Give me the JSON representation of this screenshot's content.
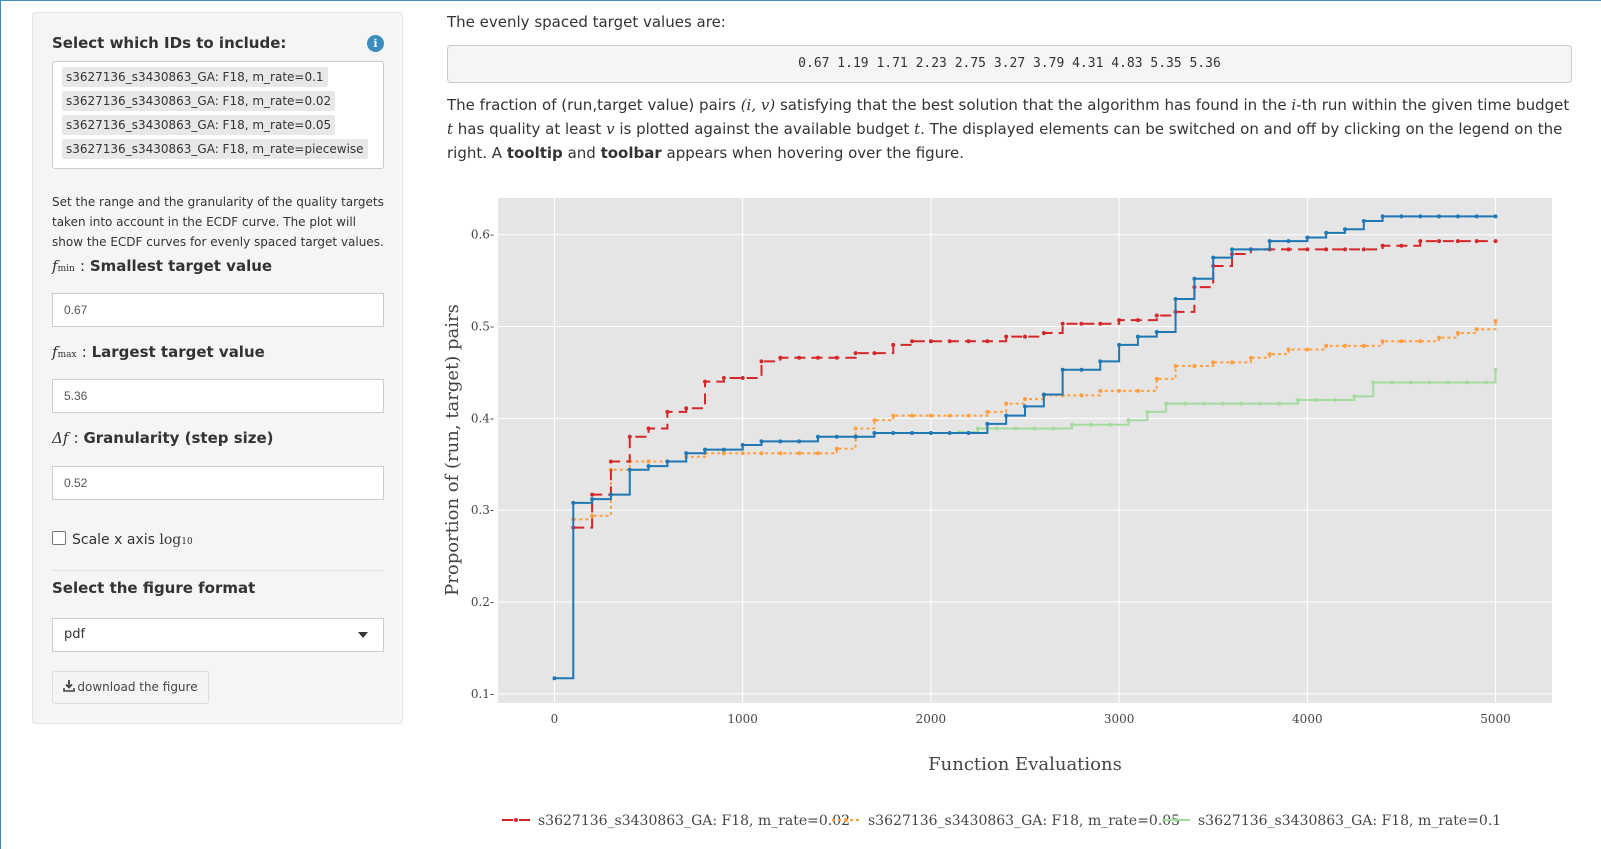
{
  "sidebar": {
    "ids_label": "Select which IDs to include:",
    "ids": [
      "s3627136_s3430863_GA: F18, m_rate=0.1",
      "s3627136_s3430863_GA: F18, m_rate=0.02",
      "s3627136_s3430863_GA: F18, m_rate=0.05",
      "s3627136_s3430863_GA: F18, m_rate=piecewise"
    ],
    "help_text": "Set the range and the granularity of the quality targets taken into account in the ECDF curve. The plot will show the ECDF curves for evenly spaced target values.",
    "fmin_symbol": "f",
    "fmin_sub": "min",
    "fmin_label": "Smallest target value",
    "fmin_value": "0.67",
    "fmax_symbol": "f",
    "fmax_sub": "max",
    "fmax_label": "Largest target value",
    "fmax_value": "5.36",
    "df_symbol": "Δf",
    "df_label": "Granularity (step size)",
    "df_value": "0.52",
    "scale_label": "Scale x axis",
    "scale_log": "log",
    "scale_log_sub": "10",
    "format_label": "Select the figure format",
    "format_value": "pdf",
    "download_label": "download the figure"
  },
  "main": {
    "intro": "The evenly spaced target values are:",
    "targets": "0.67 1.19 1.71 2.23 2.75 3.27 3.79 4.31 4.83 5.35 5.36",
    "desc_1": "The fraction of (run,target value) pairs ",
    "desc_pair": "(i, v)",
    "desc_2": " satisfying that the best solution that the algorithm has found in the ",
    "desc_i": "i",
    "desc_3": "-th run within the given time budget ",
    "desc_t": "t",
    "desc_4": " has quality at least ",
    "desc_v": "v",
    "desc_5": " is plotted against the available budget ",
    "desc_t2": "t",
    "desc_6": ". The displayed elements can be switched on and off by clicking on the legend on the right. A ",
    "desc_tooltip": "tooltip",
    "desc_and": " and ",
    "desc_toolbar": "toolbar",
    "desc_7": " appears when hovering over the figure."
  },
  "chart_data": {
    "type": "line",
    "step": true,
    "xlabel": "Function Evaluations",
    "ylabel": "Proportion of (run, target) pairs",
    "xlim": [
      -300,
      5300
    ],
    "ylim": [
      0.09,
      0.64
    ],
    "xticks": [
      0,
      1000,
      2000,
      3000,
      4000,
      5000
    ],
    "yticks": [
      0.1,
      0.2,
      0.3,
      0.4,
      0.5,
      0.6
    ],
    "grid": true,
    "legend_position": "bottom",
    "series": [
      {
        "name": "s3627136_s3430863_GA: F18, m_rate=piecewise",
        "color": "#1f77b4",
        "style": "solid",
        "x": [
          0,
          100,
          200,
          300,
          400,
          500,
          600,
          700,
          800,
          900,
          1000,
          1100,
          1200,
          1300,
          1400,
          1500,
          1600,
          1700,
          1800,
          1900,
          2000,
          2100,
          2200,
          2300,
          2400,
          2500,
          2600,
          2700,
          2800,
          2900,
          3000,
          3100,
          3200,
          3300,
          3400,
          3500,
          3600,
          3700,
          3800,
          3900,
          4000,
          4100,
          4200,
          4300,
          4400,
          4500,
          4600,
          4700,
          4800,
          4900,
          5000
        ],
        "y": [
          0.117,
          0.308,
          0.312,
          0.317,
          0.344,
          0.348,
          0.353,
          0.362,
          0.366,
          0.366,
          0.371,
          0.375,
          0.375,
          0.375,
          0.38,
          0.38,
          0.38,
          0.384,
          0.384,
          0.384,
          0.384,
          0.384,
          0.384,
          0.394,
          0.403,
          0.413,
          0.426,
          0.453,
          0.453,
          0.462,
          0.48,
          0.489,
          0.494,
          0.53,
          0.552,
          0.575,
          0.584,
          0.584,
          0.593,
          0.593,
          0.597,
          0.602,
          0.606,
          0.615,
          0.62,
          0.62,
          0.62,
          0.62,
          0.62,
          0.62,
          0.62
        ]
      },
      {
        "name": "s3627136_s3430863_GA: F18, m_rate=0.02",
        "color": "#d62728",
        "style": "dash",
        "x": [
          100,
          200,
          300,
          400,
          500,
          600,
          700,
          800,
          900,
          1000,
          1100,
          1200,
          1300,
          1400,
          1500,
          1600,
          1700,
          1800,
          1900,
          2000,
          2100,
          2200,
          2300,
          2400,
          2500,
          2600,
          2700,
          2800,
          2900,
          3000,
          3100,
          3200,
          3300,
          3400,
          3500,
          3600,
          3700,
          3800,
          3900,
          4000,
          4100,
          4200,
          4300,
          4400,
          4500,
          4600,
          4700,
          4800,
          4900,
          5000
        ],
        "y": [
          0.281,
          0.317,
          0.353,
          0.38,
          0.389,
          0.407,
          0.411,
          0.44,
          0.444,
          0.444,
          0.462,
          0.466,
          0.466,
          0.466,
          0.466,
          0.471,
          0.471,
          0.48,
          0.484,
          0.484,
          0.484,
          0.484,
          0.484,
          0.489,
          0.489,
          0.493,
          0.503,
          0.503,
          0.503,
          0.507,
          0.507,
          0.512,
          0.516,
          0.543,
          0.566,
          0.579,
          0.584,
          0.584,
          0.584,
          0.584,
          0.584,
          0.584,
          0.584,
          0.588,
          0.588,
          0.593,
          0.593,
          0.593,
          0.593,
          0.593
        ]
      },
      {
        "name": "s3627136_s3430863_GA: F18, m_rate=0.05",
        "color": "#ff9f40",
        "style": "dot",
        "x": [
          100,
          200,
          300,
          400,
          500,
          600,
          700,
          800,
          900,
          1000,
          1100,
          1200,
          1300,
          1400,
          1500,
          1600,
          1700,
          1800,
          1900,
          2000,
          2100,
          2200,
          2300,
          2400,
          2500,
          2600,
          2700,
          2800,
          2900,
          3000,
          3100,
          3200,
          3300,
          3400,
          3500,
          3600,
          3700,
          3800,
          3900,
          4000,
          4100,
          4200,
          4300,
          4400,
          4500,
          4600,
          4700,
          4800,
          4900,
          5000
        ],
        "y": [
          0.29,
          0.294,
          0.344,
          0.353,
          0.353,
          0.353,
          0.358,
          0.362,
          0.362,
          0.362,
          0.362,
          0.362,
          0.362,
          0.362,
          0.367,
          0.389,
          0.398,
          0.403,
          0.403,
          0.403,
          0.403,
          0.403,
          0.407,
          0.416,
          0.421,
          0.425,
          0.425,
          0.425,
          0.43,
          0.43,
          0.43,
          0.443,
          0.457,
          0.457,
          0.461,
          0.461,
          0.466,
          0.47,
          0.475,
          0.475,
          0.479,
          0.479,
          0.479,
          0.484,
          0.484,
          0.484,
          0.488,
          0.493,
          0.497,
          0.506
        ]
      },
      {
        "name": "s3627136_s3430863_GA: F18, m_rate=0.1",
        "color": "#a6dba0",
        "style": "solid",
        "x": [
          2150,
          2250,
          2350,
          2450,
          2550,
          2650,
          2750,
          2850,
          2950,
          3050,
          3150,
          3250,
          3350,
          3450,
          3550,
          3650,
          3750,
          3850,
          3950,
          4050,
          4150,
          4250,
          4350,
          4450,
          4550,
          4650,
          4750,
          4850,
          4950,
          5000
        ],
        "y": [
          0.385,
          0.389,
          0.389,
          0.389,
          0.389,
          0.389,
          0.393,
          0.393,
          0.393,
          0.398,
          0.407,
          0.416,
          0.416,
          0.416,
          0.416,
          0.416,
          0.416,
          0.416,
          0.42,
          0.42,
          0.42,
          0.424,
          0.439,
          0.439,
          0.439,
          0.439,
          0.439,
          0.439,
          0.439,
          0.453
        ]
      }
    ]
  }
}
